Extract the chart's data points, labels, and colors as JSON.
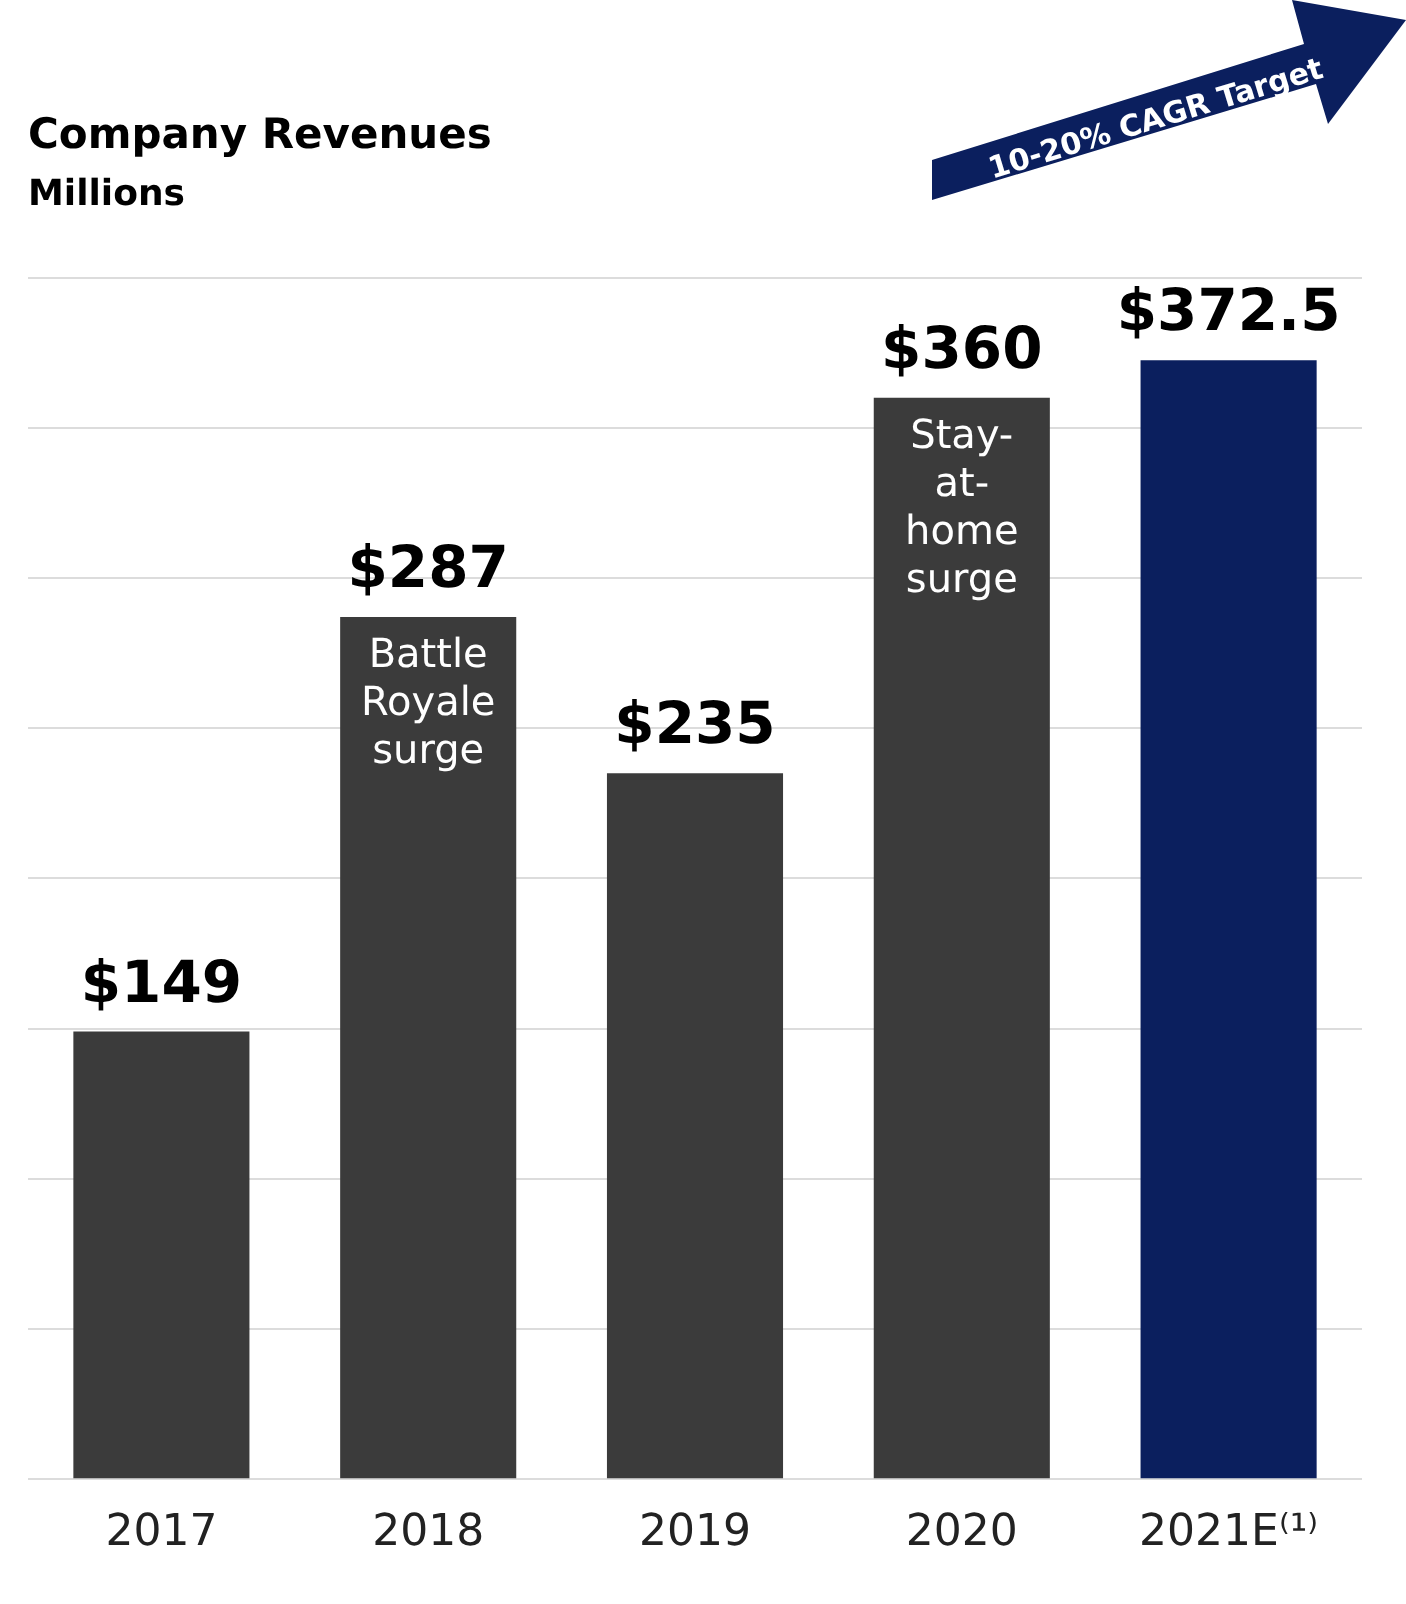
{
  "chart_data": {
    "type": "bar",
    "title": "Company Revenues",
    "subtitle": "Millions",
    "categories": [
      "2017",
      "2018",
      "2019",
      "2020",
      "2021E⁽¹⁾"
    ],
    "values": [
      149,
      287,
      235,
      360,
      372.5
    ],
    "colors": [
      "#3b3b3b",
      "#3b3b3b",
      "#3b3b3b",
      "#3b3b3b",
      "#0b1f5e"
    ],
    "value_labels": [
      "$149",
      "$287",
      "$235",
      "$360",
      "$372.5"
    ],
    "ylim": [
      0,
      400
    ],
    "yticks": [
      {
        "value": 0,
        "label": null
      },
      {
        "value": 50,
        "label": null
      },
      {
        "value": 100,
        "label": null
      },
      {
        "value": 150,
        "label": null
      },
      {
        "value": 200,
        "label": null
      },
      {
        "value": 250,
        "label": null
      },
      {
        "value": 300,
        "label": null
      },
      {
        "value": 350,
        "label": null
      },
      {
        "value": 400,
        "label": null
      }
    ],
    "grid": "y",
    "tick_labels": "x",
    "legend": false,
    "annotations": [
      {
        "text": "Battle Royale surge",
        "x": "2018",
        "y": 287
      },
      {
        "text": "Stay-at-home surge",
        "x": "2020",
        "y": 360
      },
      "10-20% CAGR Target"
    ]
  }
}
